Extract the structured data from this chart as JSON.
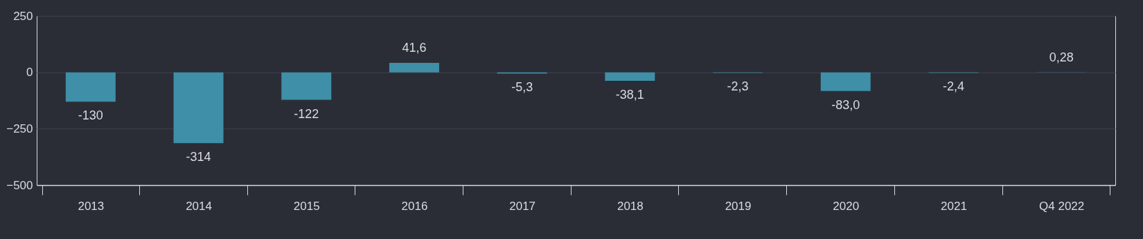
{
  "chart_data": {
    "type": "bar",
    "categories": [
      "2013",
      "2014",
      "2015",
      "2016",
      "2017",
      "2018",
      "2019",
      "2020",
      "2021",
      "Q4 2022"
    ],
    "values": [
      -130,
      -314,
      -122,
      41.6,
      -5.3,
      -38.1,
      -2.3,
      -83.0,
      -2.4,
      0.28
    ],
    "value_labels": [
      "-130",
      "-314",
      "-122",
      "41,6",
      "-5,3",
      "-38,1",
      "-2,3",
      "-83,0",
      "-2,4",
      "0,28"
    ],
    "color": "#3f8fa8",
    "ylim": [
      -500,
      250
    ],
    "yticks": [
      -500,
      -250,
      0,
      250
    ],
    "grid": "y"
  }
}
